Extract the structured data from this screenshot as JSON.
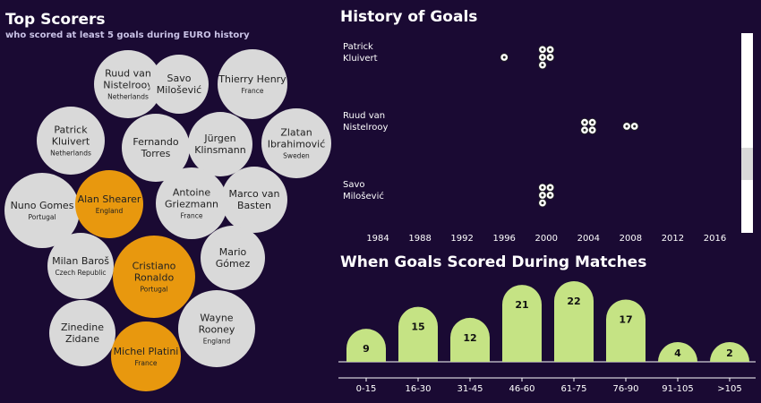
{
  "top_scorers": {
    "title": "Top Scorers",
    "subtitle": "who scored at least 5 goals during EURO history",
    "colors": {
      "default": "#d9d9d9",
      "highlight": "#e8980e"
    }
  },
  "history": {
    "title": "History of Goals"
  },
  "when": {
    "title": "When Goals Scored During Matches"
  },
  "chart_data": [
    {
      "type": "bubble",
      "title": "Top Scorers",
      "subtitle": "who scored at least 5 goals during EURO history",
      "players": [
        {
          "name": "Ruud van Nistelrooy",
          "lines": [
            "Ruud van",
            "Nistelrooy"
          ],
          "country": "Netherlands",
          "highlight": false
        },
        {
          "name": "Savo Milošević",
          "lines": [
            "Savo",
            "Milošević"
          ],
          "country": "",
          "highlight": false
        },
        {
          "name": "Thierry Henry",
          "lines": [
            "Thierry Henry"
          ],
          "country": "France",
          "highlight": false
        },
        {
          "name": "Patrick Kluivert",
          "lines": [
            "Patrick",
            "Kluivert"
          ],
          "country": "Netherlands",
          "highlight": false
        },
        {
          "name": "Fernando Torres",
          "lines": [
            "Fernando",
            "Torres"
          ],
          "country": "",
          "highlight": false
        },
        {
          "name": "Jürgen Klinsmann",
          "lines": [
            "Jürgen",
            "Klinsmann"
          ],
          "country": "",
          "highlight": false
        },
        {
          "name": "Zlatan Ibrahimović",
          "lines": [
            "Zlatan",
            "Ibrahimović"
          ],
          "country": "Sweden",
          "highlight": false
        },
        {
          "name": "Nuno Gomes",
          "lines": [
            "Nuno Gomes"
          ],
          "country": "Portugal",
          "highlight": false
        },
        {
          "name": "Alan Shearer",
          "lines": [
            "Alan Shearer"
          ],
          "country": "England",
          "highlight": true
        },
        {
          "name": "Antoine Griezmann",
          "lines": [
            "Antoine",
            "Griezmann"
          ],
          "country": "France",
          "highlight": false
        },
        {
          "name": "Marco van Basten",
          "lines": [
            "Marco van",
            "Basten"
          ],
          "country": "",
          "highlight": false
        },
        {
          "name": "Milan Baroš",
          "lines": [
            "Milan Baroš"
          ],
          "country": "Czech Republic",
          "highlight": false
        },
        {
          "name": "Cristiano Ronaldo",
          "lines": [
            "Cristiano",
            "Ronaldo"
          ],
          "country": "Portugal",
          "highlight": true
        },
        {
          "name": "Mario Gómez",
          "lines": [
            "Mario",
            "Gómez"
          ],
          "country": "",
          "highlight": false
        },
        {
          "name": "Zinedine Zidane",
          "lines": [
            "Zinedine",
            "Zidane"
          ],
          "country": "",
          "highlight": false
        },
        {
          "name": "Michel Platini",
          "lines": [
            "Michel Platini"
          ],
          "country": "France",
          "highlight": true
        },
        {
          "name": "Wayne Rooney",
          "lines": [
            "Wayne",
            "Rooney"
          ],
          "country": "England",
          "highlight": false
        }
      ]
    },
    {
      "type": "scatter",
      "title": "History of Goals",
      "x_ticks": [
        1984,
        1988,
        1992,
        1996,
        2000,
        2004,
        2008,
        2012,
        2016
      ],
      "xlim": [
        1980,
        2018
      ],
      "rows": [
        {
          "lines": [
            "Patrick",
            "Kluivert"
          ],
          "goals_by_year": [
            {
              "year": 1996,
              "goals": 1
            },
            {
              "year": 2000,
              "goals": 5
            }
          ]
        },
        {
          "lines": [
            "Ruud van",
            "Nistelrooy"
          ],
          "goals_by_year": [
            {
              "year": 2004,
              "goals": 4
            },
            {
              "year": 2008,
              "goals": 2
            }
          ]
        },
        {
          "lines": [
            "Savo",
            "Milošević"
          ],
          "goals_by_year": [
            {
              "year": 2000,
              "goals": 5
            }
          ]
        }
      ]
    },
    {
      "type": "bar",
      "title": "When Goals Scored During Matches",
      "categories": [
        "0-15",
        "16-30",
        "31-45",
        "46-60",
        "61-75",
        "76-90",
        "91-105",
        ">105"
      ],
      "values": [
        9,
        15,
        12,
        21,
        22,
        17,
        4,
        2
      ],
      "ylim": [
        0,
        22
      ],
      "color": "#c5e384"
    }
  ]
}
